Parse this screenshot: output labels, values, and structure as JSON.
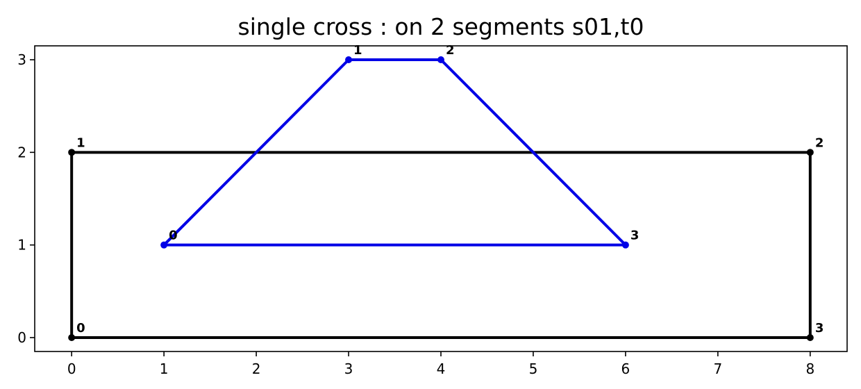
{
  "chart_data": {
    "type": "line",
    "title": "single cross : on 2 segments s01,t0",
    "xlabel": "",
    "ylabel": "",
    "xlim": [
      -0.4,
      8.4
    ],
    "ylim": [
      -0.15,
      3.15
    ],
    "xticks": [
      0,
      1,
      2,
      3,
      4,
      5,
      6,
      7,
      8
    ],
    "yticks": [
      0,
      1,
      2,
      3
    ],
    "grid": false,
    "legend": "none",
    "series": [
      {
        "color": "#000000",
        "closed": true,
        "points": [
          {
            "x": 0,
            "y": 0,
            "label": "0"
          },
          {
            "x": 0,
            "y": 2,
            "label": "1"
          },
          {
            "x": 8,
            "y": 2,
            "label": "2"
          },
          {
            "x": 8,
            "y": 0,
            "label": "3"
          }
        ]
      },
      {
        "color": "#0000e6",
        "closed": true,
        "points": [
          {
            "x": 1,
            "y": 1,
            "label": "0"
          },
          {
            "x": 3,
            "y": 3,
            "label": "1"
          },
          {
            "x": 4,
            "y": 3,
            "label": "2"
          },
          {
            "x": 6,
            "y": 1,
            "label": "3"
          }
        ]
      }
    ]
  }
}
